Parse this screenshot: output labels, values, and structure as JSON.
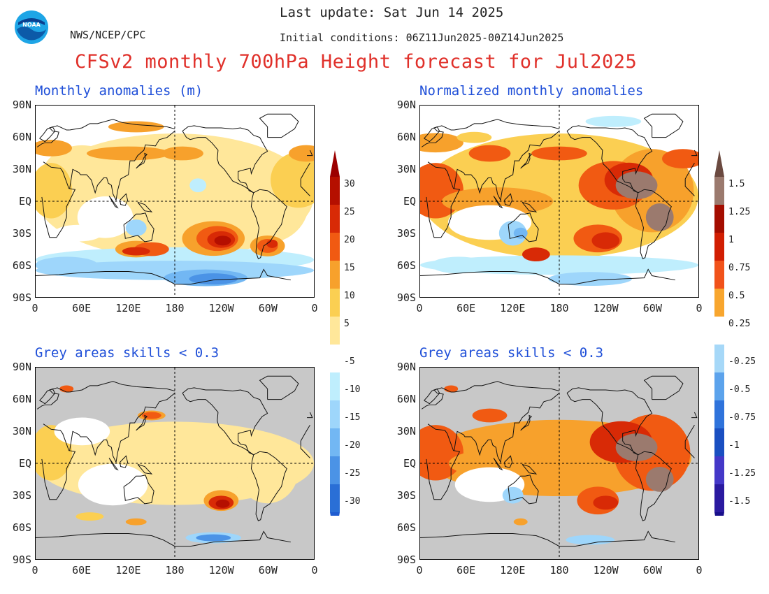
{
  "header": {
    "last_update": "Last update: Sat Jun 14 2025",
    "initial_conditions": "Initial conditions: 06Z11Jun2025-00Z14Jun2025",
    "org": "NWS/NCEP/CPC",
    "logo_text": "NOAA",
    "title": "CFSv2 monthly 700hPa Height forecast for Jul2025"
  },
  "panels": {
    "top_left": {
      "title": "Monthly anomalies (m)"
    },
    "top_right": {
      "title": "Normalized monthly anomalies"
    },
    "bottom_left": {
      "title": "Grey areas skills < 0.3"
    },
    "bottom_right": {
      "title": "Grey areas skills < 0.3"
    }
  },
  "axes": {
    "lat_ticks": [
      "90N",
      "60N",
      "30N",
      "EQ",
      "30S",
      "60S",
      "90S"
    ],
    "lon_ticks": [
      "0",
      "60E",
      "120E",
      "180",
      "120W",
      "60W",
      "0"
    ]
  },
  "colorbars": {
    "anomaly_m": {
      "labels": [
        "30",
        "25",
        "20",
        "15",
        "10",
        "5",
        "-5",
        "-10",
        "-15",
        "-20",
        "-25",
        "-30"
      ],
      "colors": [
        "#b50f00",
        "#d82a06",
        "#f15a12",
        "#f7a12c",
        "#fbcf52",
        "#ffe79a",
        "#ffffff",
        "#bfeefd",
        "#9ed6fb",
        "#72b7f3",
        "#4b93e6",
        "#2a6fd6"
      ],
      "top_arrow": "#9b0000",
      "bottom_arrow": "#1f5cd0"
    },
    "normalized": {
      "labels": [
        "1.5",
        "1.25",
        "1",
        "0.75",
        "0.5",
        "0.25",
        "-0.25",
        "-0.5",
        "-0.75",
        "-1",
        "-1.25",
        "-1.5"
      ],
      "colors": [
        "#9b7a6e",
        "#a40d00",
        "#d11e02",
        "#f1521a",
        "#f8a62e",
        "#ffffff",
        "#a6d8f8",
        "#5ca3ec",
        "#2f73db",
        "#1a4fc1",
        "#4438c8",
        "#2a1aa0"
      ],
      "top_arrow": "#6b4a40",
      "bottom_arrow": "#180f8a"
    }
  },
  "colors": {
    "title_red": "#e0302a",
    "panel_title_blue": "#1f4fd8",
    "grey_mask": "#c0c0c0"
  }
}
